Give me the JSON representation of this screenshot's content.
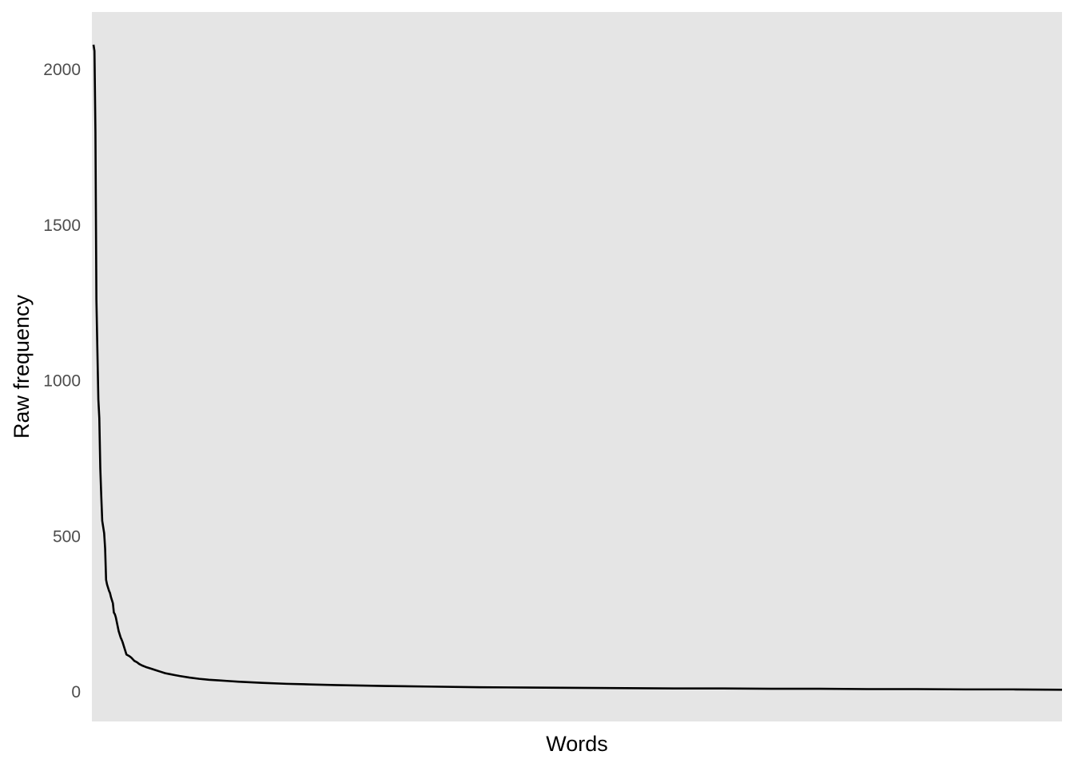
{
  "chart_data": {
    "type": "line",
    "title": "",
    "xlabel": "Words",
    "ylabel": "Raw frequency",
    "x_tick_labels": [],
    "yticks": [
      {
        "value": 0,
        "label": "0"
      },
      {
        "value": 500,
        "label": "500"
      },
      {
        "value": 1000,
        "label": "1000"
      },
      {
        "value": 1500,
        "label": "1500"
      },
      {
        "value": 2000,
        "label": "2000"
      }
    ],
    "ylim": [
      -95,
      2185
    ],
    "xlim": [
      1,
      1000
    ],
    "grid": false,
    "legend": "none",
    "colors": {
      "panel_background": "#e5e5e5",
      "line": "#000000",
      "tick_text": "#4d4d4d",
      "axis_title": "#000000"
    },
    "series": [
      {
        "x": [
          1,
          2,
          3,
          4,
          5,
          6,
          7,
          8,
          9,
          10,
          11,
          12,
          13,
          14,
          15,
          16,
          17,
          18,
          19,
          20,
          21,
          22,
          23,
          24,
          25,
          26,
          27,
          28,
          29,
          30,
          31,
          32,
          33,
          35,
          38,
          40,
          43,
          46,
          48,
          51,
          55,
          60,
          65,
          70,
          75,
          80,
          85,
          90,
          100,
          110,
          120,
          130,
          140,
          150,
          175,
          200,
          225,
          250,
          300,
          350,
          400,
          450,
          500,
          550,
          600,
          650,
          700,
          750,
          800,
          850,
          900,
          950,
          1000
        ],
        "y": [
          2080,
          2060,
          1800,
          1260,
          1100,
          940,
          880,
          720,
          630,
          550,
          530,
          510,
          460,
          360,
          345,
          335,
          325,
          318,
          305,
          295,
          285,
          255,
          250,
          240,
          225,
          210,
          195,
          185,
          175,
          168,
          160,
          150,
          140,
          120,
          115,
          110,
          100,
          95,
          90,
          85,
          80,
          75,
          70,
          65,
          60,
          57,
          54,
          51,
          46,
          42,
          39,
          37,
          35,
          33,
          29,
          26,
          24,
          22,
          19,
          17,
          15,
          14,
          13,
          12,
          11,
          11,
          10,
          10,
          9,
          9,
          8,
          8,
          7
        ]
      }
    ]
  }
}
